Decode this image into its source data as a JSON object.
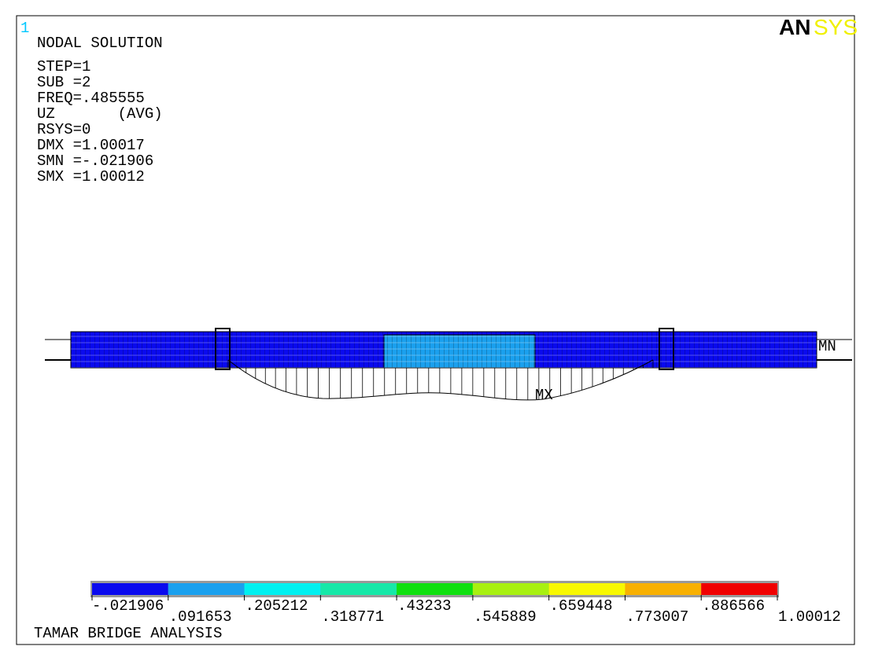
{
  "window_number": "1",
  "logo": {
    "left": "AN",
    "right": "SYS"
  },
  "header": [
    "NODAL SOLUTION",
    "STEP=1",
    "SUB =2",
    "FREQ=.485555",
    "UZ       (AVG)",
    "RSYS=0",
    "DMX =1.00017",
    "SMN =-.021906",
    "SMX =1.00012"
  ],
  "markers": {
    "max": "MX",
    "min": "MN"
  },
  "legend": {
    "colors": [
      "#0a0aee",
      "#1aa0ee",
      "#00f0f0",
      "#16e8a8",
      "#10e010",
      "#a8f010",
      "#f8f800",
      "#f8b000",
      "#f00000"
    ],
    "labels": [
      "-.021906",
      ".091653",
      ".205212",
      ".318771",
      ".43233",
      ".545889",
      ".659448",
      ".773007",
      ".886566",
      "1.00012"
    ]
  },
  "footer": "TAMAR BRIDGE ANALYSIS"
}
